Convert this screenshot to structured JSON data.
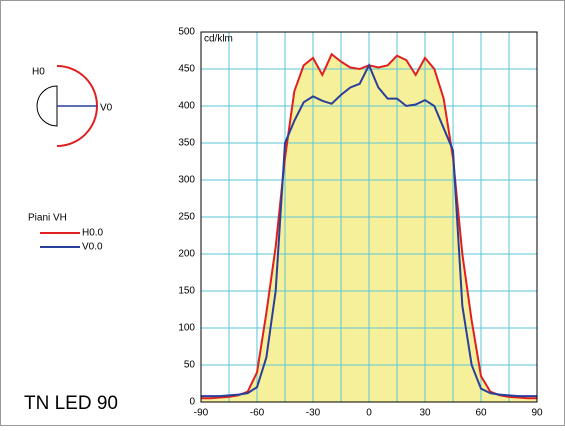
{
  "diagram": {
    "h_label": "H0",
    "v_label": "V0"
  },
  "chart_data": {
    "type": "line",
    "title": "TN LED 90",
    "legend_title": "Piani VH",
    "y_unit_label": "cd/klm",
    "x": [
      -90,
      -85,
      -80,
      -75,
      -70,
      -65,
      -60,
      -55,
      -50,
      -45,
      -40,
      -35,
      -30,
      -25,
      -20,
      -15,
      -10,
      -5,
      0,
      5,
      10,
      15,
      20,
      25,
      30,
      35,
      40,
      45,
      50,
      55,
      60,
      65,
      70,
      75,
      80,
      85,
      90
    ],
    "series": [
      {
        "name": "H0.0",
        "color": "#e02020",
        "values": [
          5,
          5,
          6,
          7,
          9,
          14,
          40,
          120,
          210,
          330,
          420,
          455,
          465,
          442,
          470,
          460,
          452,
          450,
          455,
          452,
          455,
          468,
          462,
          442,
          465,
          450,
          410,
          330,
          200,
          110,
          35,
          14,
          9,
          7,
          6,
          5,
          5
        ]
      },
      {
        "name": "V0.0",
        "color": "#2a3f9a",
        "values": [
          8,
          8,
          8,
          9,
          10,
          12,
          20,
          60,
          150,
          350,
          380,
          405,
          413,
          407,
          403,
          415,
          425,
          430,
          455,
          425,
          410,
          410,
          400,
          402,
          408,
          400,
          370,
          340,
          130,
          50,
          18,
          12,
          10,
          9,
          8,
          8,
          8
        ]
      }
    ],
    "fill_color": "#f6f09a",
    "xlim": [
      -90,
      90
    ],
    "ylim": [
      0,
      500
    ],
    "xticks": [
      -90,
      -60,
      -30,
      0,
      30,
      60,
      90
    ],
    "xgrid": [
      -90,
      -75,
      -60,
      -45,
      -30,
      -15,
      0,
      15,
      30,
      45,
      60,
      75,
      90
    ],
    "yticks": [
      0,
      50,
      100,
      150,
      200,
      250,
      300,
      350,
      400,
      450,
      500
    ],
    "grid": true
  }
}
